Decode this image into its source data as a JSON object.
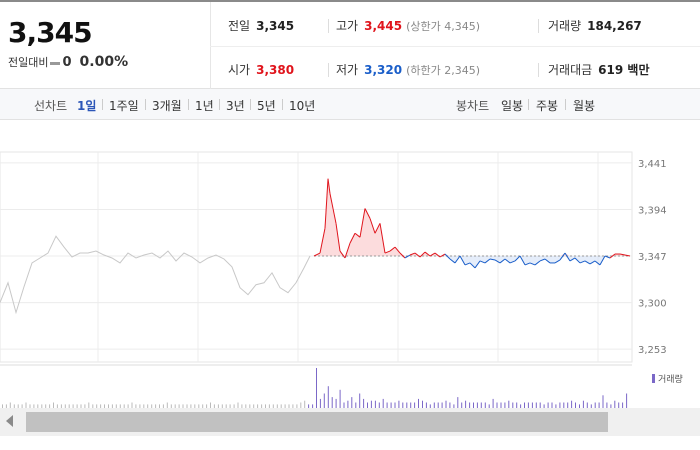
{
  "price": {
    "current": "3,345",
    "change_label": "전일대비",
    "change_value": "0",
    "change_pct": "0.00%"
  },
  "stats": {
    "prev_close": {
      "label": "전일",
      "value": "3,345"
    },
    "high": {
      "label": "고가",
      "value": "3,445",
      "limit_text": "(상한가 4,345)"
    },
    "volume": {
      "label": "거래량",
      "value": "184,267"
    },
    "open": {
      "label": "시가",
      "value": "3,380"
    },
    "low": {
      "label": "저가",
      "value": "3,320",
      "limit_text": "(하한가 2,345)"
    },
    "amount": {
      "label": "거래대금",
      "value": "619 백만"
    }
  },
  "periods": {
    "line_label": "선차트",
    "line_items": [
      "1일",
      "1주일",
      "3개월",
      "1년",
      "3년",
      "5년",
      "10년"
    ],
    "active_index": 0,
    "candle_label": "봉차트",
    "candle_items": [
      "일봉",
      "주봉",
      "월봉"
    ]
  },
  "colors": {
    "up": "#e0141c",
    "down": "#1a5ec9",
    "flat": "#c8c8c8",
    "volume": "#7b68c8",
    "active_tab": "#2c56b8"
  },
  "chart_data": {
    "type": "line",
    "ylim": [
      3240,
      3452
    ],
    "yticks": [
      "3,441",
      "3,394",
      "3,347",
      "3,300",
      "3,253"
    ],
    "ytick_values": [
      3441,
      3394,
      3347,
      3300,
      3253
    ],
    "baseline": 3347,
    "volume_legend": "거래량",
    "segments": [
      {
        "kind": "pre",
        "x": [
          0,
          8,
          16,
          24,
          32,
          40,
          48,
          56,
          64,
          72,
          80,
          88,
          96,
          104,
          112,
          120,
          128,
          136,
          144,
          152,
          160,
          168,
          176,
          184,
          192,
          200,
          208,
          216,
          224,
          232,
          240,
          248,
          256,
          264,
          272,
          280,
          288,
          296,
          304,
          310
        ],
        "y": [
          3300,
          3320,
          3290,
          3316,
          3340,
          3345,
          3350,
          3367,
          3356,
          3346,
          3350,
          3350,
          3352,
          3348,
          3345,
          3340,
          3350,
          3345,
          3348,
          3350,
          3345,
          3352,
          3342,
          3350,
          3346,
          3340,
          3345,
          3348,
          3344,
          3336,
          3315,
          3308,
          3318,
          3320,
          3330,
          3315,
          3310,
          3320,
          3335,
          3347
        ]
      },
      {
        "kind": "main",
        "x": [
          314,
          320,
          325,
          328,
          330,
          333,
          336,
          340,
          345,
          350,
          355,
          360,
          365,
          370,
          375,
          380,
          385,
          390,
          395,
          400,
          405,
          410,
          415,
          420,
          425,
          430,
          435,
          440,
          445,
          450,
          455,
          460,
          465,
          470,
          475,
          480,
          485,
          490,
          495,
          500,
          505,
          510,
          515,
          520,
          525,
          530,
          535,
          540,
          545,
          550,
          555,
          560,
          565,
          570,
          575,
          580,
          585,
          590,
          595,
          600,
          605,
          610,
          615,
          620,
          625,
          630
        ],
        "y": [
          3347,
          3350,
          3375,
          3425,
          3410,
          3395,
          3380,
          3352,
          3345,
          3360,
          3370,
          3366,
          3395,
          3385,
          3370,
          3380,
          3350,
          3352,
          3356,
          3350,
          3345,
          3348,
          3350,
          3346,
          3351,
          3347,
          3350,
          3346,
          3349,
          3344,
          3340,
          3347,
          3338,
          3340,
          3335,
          3342,
          3340,
          3344,
          3343,
          3340,
          3344,
          3340,
          3342,
          3347,
          3338,
          3340,
          3338,
          3342,
          3344,
          3340,
          3340,
          3343,
          3350,
          3342,
          3345,
          3340,
          3342,
          3339,
          3342,
          3338,
          3347,
          3345,
          3349,
          3349,
          3348,
          3347
        ]
      }
    ],
    "volume": [
      2,
      2,
      3,
      2,
      2,
      2,
      3,
      2,
      2,
      2,
      2,
      2,
      2,
      3,
      2,
      2,
      2,
      2,
      2,
      2,
      2,
      2,
      3,
      2,
      2,
      2,
      2,
      2,
      2,
      2,
      2,
      2,
      2,
      3,
      2,
      2,
      2,
      2,
      2,
      2,
      2,
      2,
      3,
      2,
      2,
      2,
      2,
      2,
      2,
      2,
      2,
      2,
      2,
      3,
      2,
      2,
      2,
      2,
      2,
      2,
      3,
      2,
      2,
      2,
      2,
      2,
      2,
      2,
      2,
      2,
      2,
      2,
      2,
      2,
      2,
      2,
      3,
      4,
      2,
      2,
      22,
      5,
      8,
      12,
      6,
      5,
      10,
      3,
      4,
      6,
      3,
      8,
      5,
      3,
      4,
      4,
      3,
      5,
      3,
      3,
      3,
      4,
      3,
      3,
      3,
      3,
      5,
      4,
      3,
      2,
      3,
      3,
      3,
      4,
      3,
      2,
      6,
      3,
      4,
      3,
      3,
      3,
      3,
      3,
      2,
      5,
      3,
      3,
      3,
      4,
      3,
      3,
      2,
      3,
      3,
      3,
      3,
      3,
      2,
      3,
      3,
      2,
      3,
      3,
      3,
      4,
      3,
      2,
      4,
      3,
      2,
      3,
      3,
      7,
      3,
      2,
      4,
      3,
      3,
      8
    ]
  }
}
